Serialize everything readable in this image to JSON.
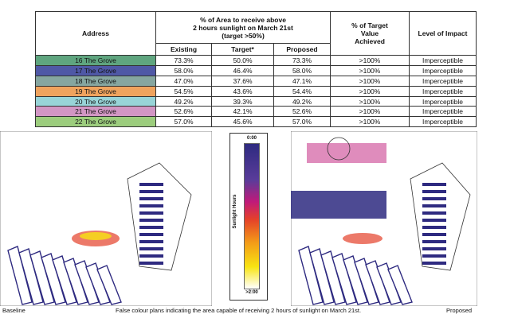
{
  "table": {
    "headers": {
      "address": "Address",
      "group": "% of Area to receive above 2 hours sunlight on March 21st (target >50%)",
      "group_lines": [
        "% of Area to receive above",
        "2 hours sunlight on March 21st",
        "(target >50%)"
      ],
      "existing": "Existing",
      "target": "Target*",
      "proposed": "Proposed",
      "pct_target_lines": [
        "% of Target",
        "Value",
        "Achieved"
      ],
      "impact": "Level of Impact"
    },
    "rows": [
      {
        "address": "16 The Grove",
        "color": "#5fa57f",
        "existing": "73.3%",
        "target": "50.0%",
        "proposed": "73.3%",
        "pct": ">100%",
        "impact": "Imperceptible"
      },
      {
        "address": "17 The Grove",
        "color": "#4f58a6",
        "existing": "58.0%",
        "target": "46.4%",
        "proposed": "58.0%",
        "pct": ">100%",
        "impact": "Imperceptible"
      },
      {
        "address": "18 The Grove",
        "color": "#86a6a0",
        "existing": "47.0%",
        "target": "37.6%",
        "proposed": "47.1%",
        "pct": ">100%",
        "impact": "Imperceptible"
      },
      {
        "address": "19 The Grove",
        "color": "#efa35e",
        "existing": "54.5%",
        "target": "43.6%",
        "proposed": "54.4%",
        "pct": ">100%",
        "impact": "Imperceptible"
      },
      {
        "address": "20 The Grove",
        "color": "#98d4d8",
        "existing": "49.2%",
        "target": "39.3%",
        "proposed": "49.2%",
        "pct": ">100%",
        "impact": "Imperceptible"
      },
      {
        "address": "21 The Grove",
        "color": "#d296c4",
        "existing": "52.6%",
        "target": "42.1%",
        "proposed": "52.6%",
        "pct": ">100%",
        "impact": "Imperceptible"
      },
      {
        "address": "22 The Grove",
        "color": "#9ccd7d",
        "existing": "57.0%",
        "target": "45.6%",
        "proposed": "57.0%",
        "pct": ">100%",
        "impact": "Imperceptible"
      }
    ]
  },
  "legend": {
    "title": "Sunlight Hours",
    "top": "0:00",
    "bottom": ">2:00"
  },
  "captions": {
    "left": "Baseline",
    "center": "False colour plans indicating the area capable of receiving 2 hours of sunlight on March 21st.",
    "right": "Proposed"
  }
}
